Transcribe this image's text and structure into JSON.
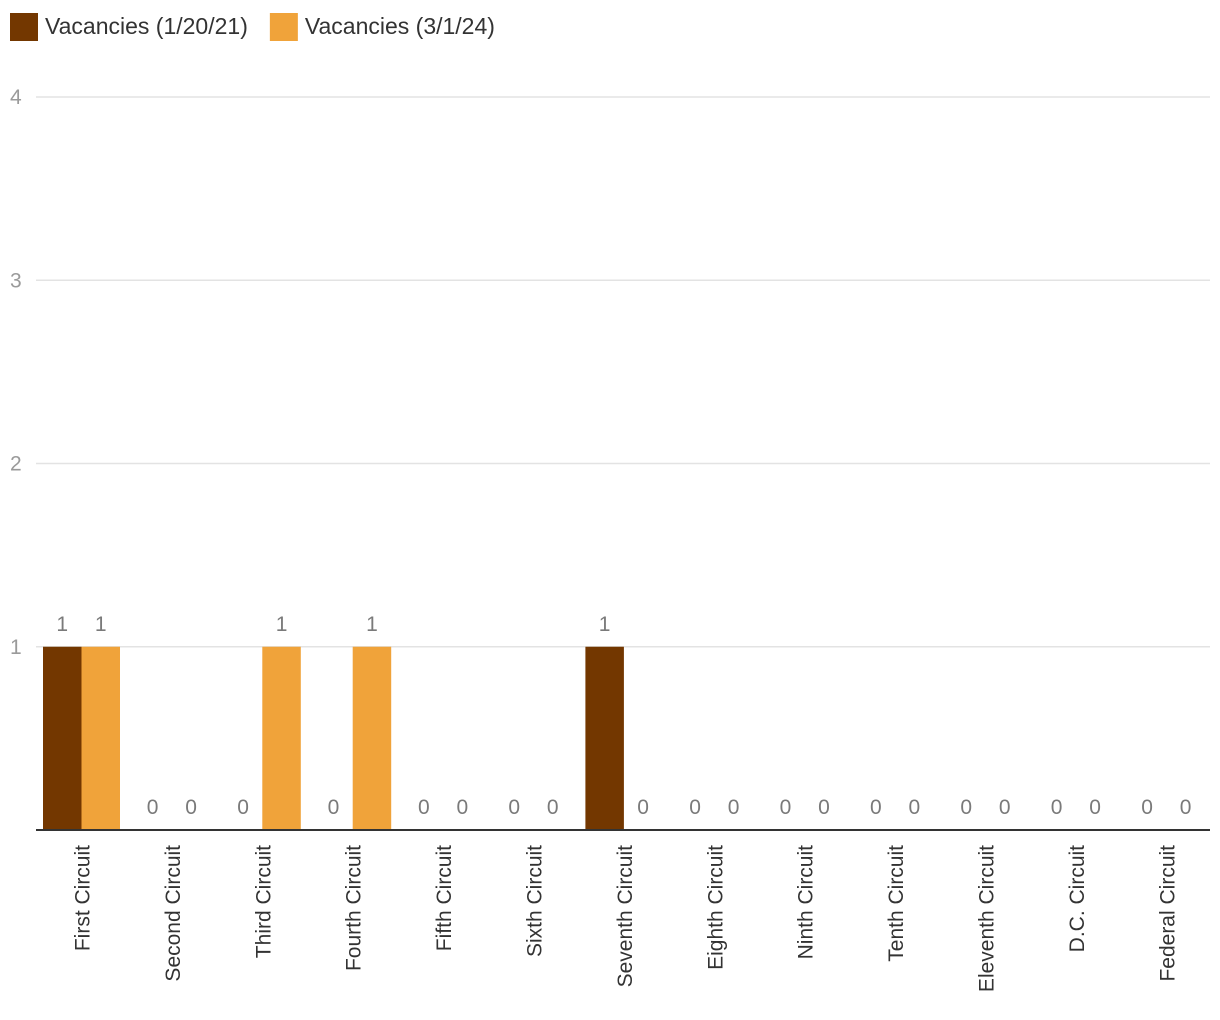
{
  "chart_data": {
    "type": "bar",
    "categories": [
      "First Circuit",
      "Second Circuit",
      "Third Circuit",
      "Fourth Circuit",
      "Fifth Circuit",
      "Sixth Circuit",
      "Seventh Circuit",
      "Eighth Circuit",
      "Ninth Circuit",
      "Tenth Circuit",
      "Eleventh Circuit",
      "D.C. Circuit",
      "Federal Circuit"
    ],
    "series": [
      {
        "name": "Vacancies (1/20/21)",
        "color": "#733700",
        "values": [
          1,
          0,
          0,
          0,
          0,
          0,
          1,
          0,
          0,
          0,
          0,
          0,
          0
        ]
      },
      {
        "name": "Vacancies (3/1/24)",
        "color": "#f0a33a",
        "values": [
          1,
          0,
          1,
          1,
          0,
          0,
          0,
          0,
          0,
          0,
          0,
          0,
          0
        ]
      }
    ],
    "yticks": [
      "1",
      "2",
      "3",
      "4"
    ],
    "ylim": [
      0,
      4
    ],
    "grid": true,
    "legend": "top-left",
    "data_labels": true
  }
}
